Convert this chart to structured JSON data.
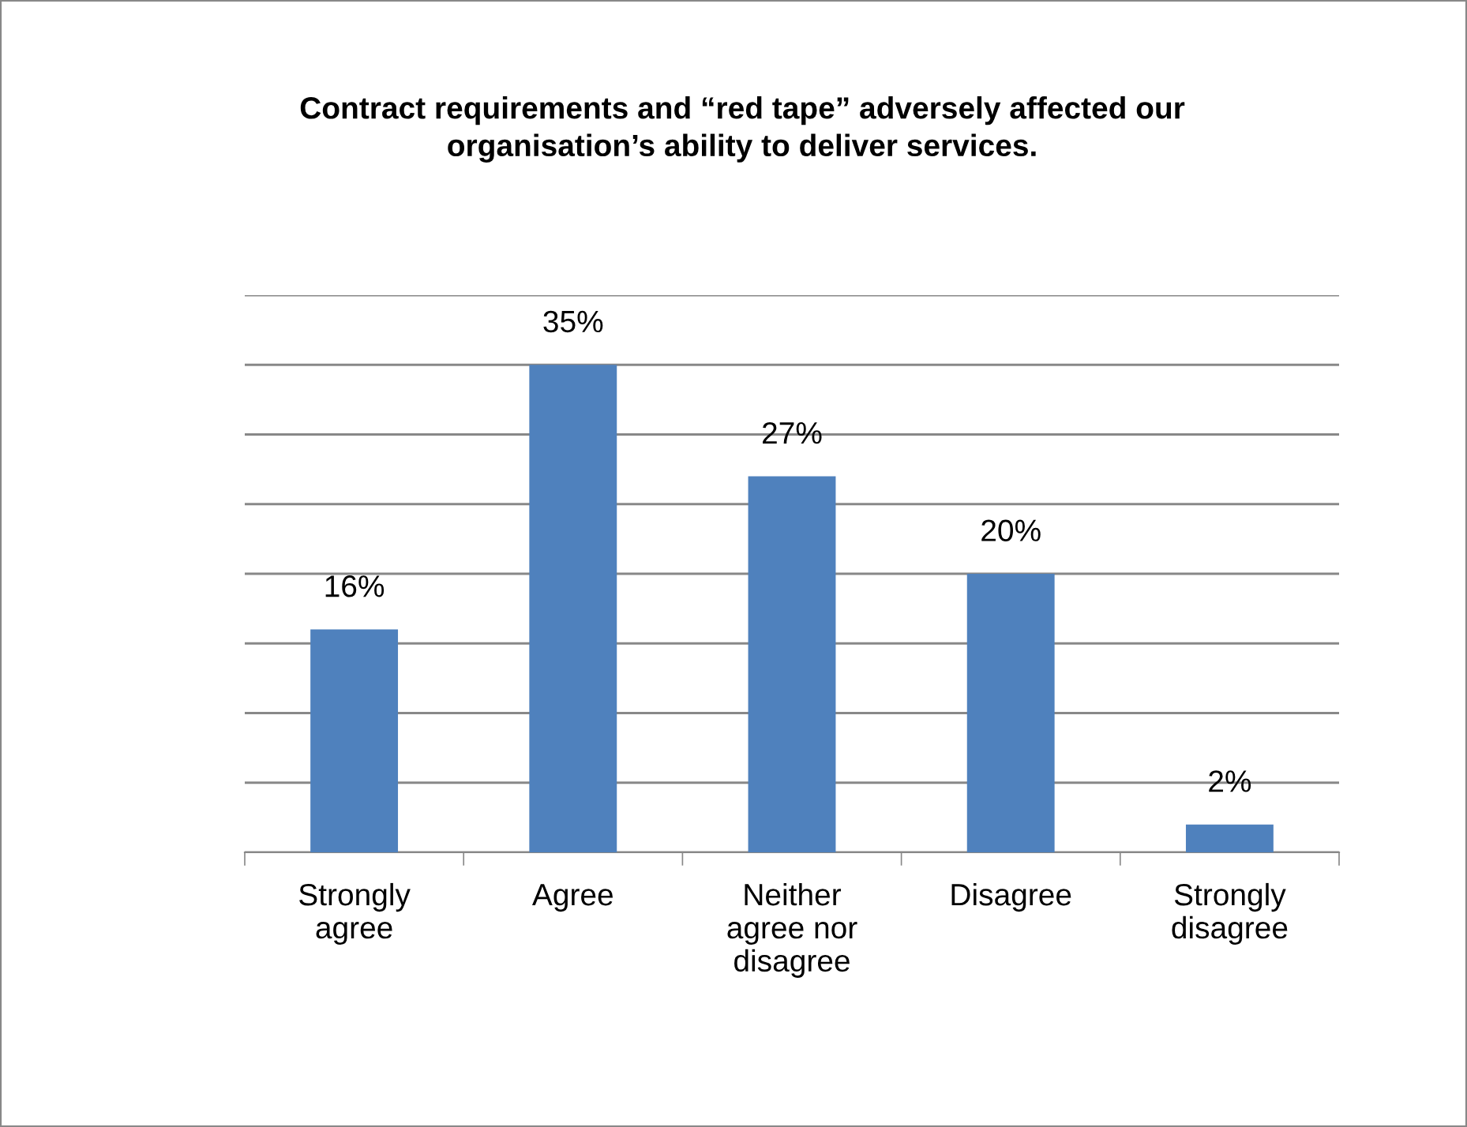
{
  "chart_data": {
    "type": "bar",
    "title": "Contract requirements and “red tape” adversely affected our\norganisation’s ability to deliver services.",
    "categories": [
      "Strongly\nagree",
      "Agree",
      "Neither\nagree nor\ndisagree",
      "Disagree",
      "Strongly\ndisagree"
    ],
    "values": [
      16,
      35,
      27,
      20,
      2
    ],
    "color": "#4f81bd",
    "value_labels": [
      "16%",
      "35%",
      "27%",
      "20%",
      "2%"
    ],
    "ylim": [
      0,
      40
    ],
    "yticks": [
      {
        "value": 0,
        "label": null
      },
      {
        "value": 5,
        "label": null
      },
      {
        "value": 10,
        "label": null
      },
      {
        "value": 15,
        "label": null
      },
      {
        "value": 20,
        "label": null
      },
      {
        "value": 25,
        "label": null
      },
      {
        "value": 30,
        "label": null
      },
      {
        "value": 35,
        "label": null
      },
      {
        "value": 40,
        "label": null
      }
    ],
    "grid": "y",
    "tick_labels": "x",
    "legend": false
  }
}
